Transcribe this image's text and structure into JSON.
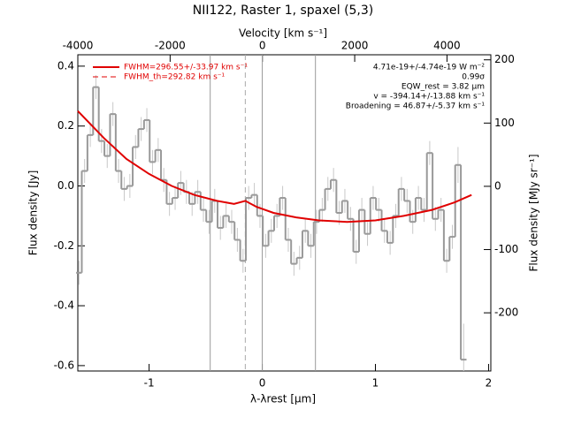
{
  "chart_data": {
    "type": "line",
    "title": "NII122, Raster 1, spaxel (5,3)",
    "xlabel": "λ-λrest [μm]",
    "x2label": "Velocity [km s⁻¹]",
    "ylabel": "Flux density [Jy]",
    "y2label": "Flux density [MJy sr⁻¹]",
    "xlim": [
      -1.63,
      2.02
    ],
    "xticks": [
      -1,
      0,
      1,
      2
    ],
    "x2lim": [
      -4000,
      4950
    ],
    "x2ticks": [
      -4000,
      -2000,
      0,
      2000,
      4000
    ],
    "ylim": [
      -0.618,
      0.438
    ],
    "yticks": [
      {
        "value": 0.4,
        "label": "0.4"
      },
      {
        "value": 0.2,
        "label": "0.2"
      },
      {
        "value": 0,
        "label": "0.0"
      },
      {
        "value": -0.2,
        "label": "-0.2"
      },
      {
        "value": -0.4,
        "label": "-0.4"
      },
      {
        "value": -0.6,
        "label": "-0.6"
      }
    ],
    "y2lim": [
      -292,
      208
    ],
    "y2ticks": [
      200,
      100,
      0,
      -100,
      -200
    ],
    "series": [
      {
        "color": "#999999",
        "style": "step",
        "x": [
          -1.62,
          -1.57,
          -1.52,
          -1.47,
          -1.42,
          -1.37,
          -1.32,
          -1.27,
          -1.22,
          -1.17,
          -1.12,
          -1.07,
          -1.02,
          -0.97,
          -0.92,
          -0.87,
          -0.82,
          -0.77,
          -0.72,
          -0.67,
          -0.62,
          -0.57,
          -0.52,
          -0.47,
          -0.42,
          -0.37,
          -0.32,
          -0.27,
          -0.22,
          -0.17,
          -0.12,
          -0.07,
          -0.02,
          0.03,
          0.08,
          0.13,
          0.18,
          0.23,
          0.28,
          0.33,
          0.38,
          0.43,
          0.48,
          0.53,
          0.58,
          0.63,
          0.68,
          0.73,
          0.78,
          0.83,
          0.88,
          0.93,
          0.98,
          1.03,
          1.08,
          1.13,
          1.18,
          1.23,
          1.28,
          1.33,
          1.38,
          1.43,
          1.48,
          1.53,
          1.58,
          1.63,
          1.68,
          1.73,
          1.78
        ],
        "values": [
          -0.29,
          0.05,
          0.17,
          0.33,
          0.15,
          0.1,
          0.24,
          0.05,
          -0.01,
          0.0,
          0.13,
          0.19,
          0.22,
          0.08,
          0.12,
          0.02,
          -0.06,
          -0.04,
          0.01,
          -0.02,
          -0.06,
          -0.02,
          -0.08,
          -0.12,
          -0.05,
          -0.14,
          -0.1,
          -0.12,
          -0.18,
          -0.25,
          -0.04,
          -0.03,
          -0.1,
          -0.2,
          -0.15,
          -0.1,
          -0.04,
          -0.18,
          -0.26,
          -0.24,
          -0.15,
          -0.2,
          -0.12,
          -0.08,
          -0.01,
          0.02,
          -0.09,
          -0.05,
          -0.11,
          -0.22,
          -0.08,
          -0.16,
          -0.04,
          -0.08,
          -0.15,
          -0.19,
          -0.1,
          -0.01,
          -0.05,
          -0.12,
          -0.04,
          -0.08,
          0.11,
          -0.11,
          -0.08,
          -0.25,
          -0.17,
          0.07,
          -0.58
        ],
        "errors": [
          0.04,
          0.04,
          0.04,
          0.04,
          0.04,
          0.04,
          0.04,
          0.04,
          0.04,
          0.04,
          0.04,
          0.04,
          0.04,
          0.04,
          0.04,
          0.04,
          0.04,
          0.04,
          0.04,
          0.04,
          0.04,
          0.04,
          0.04,
          0.04,
          0.04,
          0.04,
          0.04,
          0.04,
          0.04,
          0.04,
          0.04,
          0.04,
          0.04,
          0.04,
          0.04,
          0.04,
          0.04,
          0.04,
          0.04,
          0.04,
          0.04,
          0.04,
          0.04,
          0.04,
          0.04,
          0.04,
          0.04,
          0.04,
          0.04,
          0.04,
          0.04,
          0.04,
          0.04,
          0.04,
          0.04,
          0.04,
          0.04,
          0.04,
          0.04,
          0.04,
          0.04,
          0.04,
          0.04,
          0.04,
          0.04,
          0.04,
          0.04,
          0.06,
          0.12
        ]
      },
      {
        "name": "FWHM=296.55+/-33.97 km s⁻¹",
        "color": "#e00000",
        "x": [
          -1.63,
          -1.4,
          -1.2,
          -1.0,
          -0.8,
          -0.6,
          -0.4,
          -0.25,
          -0.15,
          -0.05,
          0.1,
          0.3,
          0.5,
          0.75,
          1.0,
          1.25,
          1.5,
          1.7,
          1.85
        ],
        "values": [
          0.25,
          0.16,
          0.09,
          0.04,
          0.0,
          -0.03,
          -0.05,
          -0.06,
          -0.05,
          -0.07,
          -0.09,
          -0.105,
          -0.115,
          -0.12,
          -0.115,
          -0.1,
          -0.08,
          -0.055,
          -0.03
        ]
      }
    ],
    "legend_dashed": {
      "name": "FWHM_th=292.82 km s⁻¹",
      "color": "#e00000"
    },
    "vlines": [
      {
        "x": -0.46,
        "color": "#999999",
        "dashed": false
      },
      {
        "x": 0,
        "color": "#999999",
        "dashed": false
      },
      {
        "x": 0.47,
        "color": "#999999",
        "dashed": false
      },
      {
        "x": -0.15,
        "color": "#aaaaaa",
        "dashed": true
      }
    ],
    "annotations": [
      "4.71e-19+/-4.74e-19 W m⁻²",
      "0.99σ",
      "EQW_rest = 3.82 μm",
      "v = -394.14+/-13.88 km s⁻¹",
      "Broadening = 46.87+/-5.37 km s⁻¹"
    ]
  }
}
